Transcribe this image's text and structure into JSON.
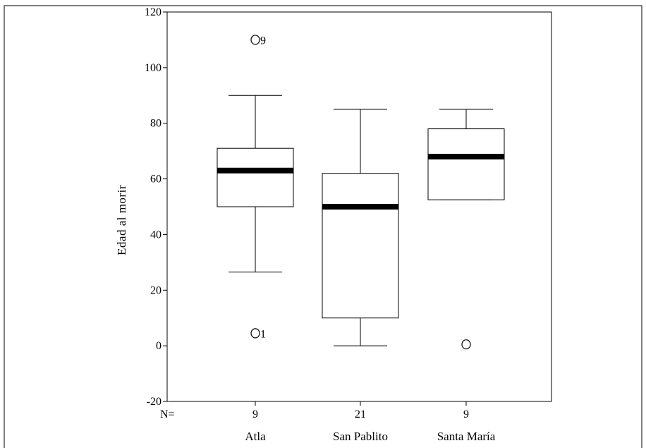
{
  "chart_data": {
    "type": "box",
    "ylabel": "Edad al morir",
    "xlabel": "",
    "ylim": [
      -20,
      120
    ],
    "yticks": [
      -20,
      0,
      20,
      40,
      60,
      80,
      100,
      120
    ],
    "n_prefix": "N=",
    "categories": [
      "Atla",
      "San Pablito",
      "Santa María"
    ],
    "n": [
      "9",
      "21",
      "9"
    ],
    "boxes": [
      {
        "category": "Atla",
        "whisker_low": 26.5,
        "q1": 50,
        "median": 63,
        "q3": 71,
        "whisker_high": 90,
        "outliers": [
          {
            "value": 110,
            "label": "9"
          },
          {
            "value": 4.5,
            "label": "1"
          }
        ]
      },
      {
        "category": "San Pablito",
        "whisker_low": 0,
        "q1": 10,
        "median": 50,
        "q3": 62,
        "whisker_high": 85,
        "outliers": []
      },
      {
        "category": "Santa María",
        "whisker_low": 52.5,
        "q1": 52.5,
        "median": 68,
        "q3": 78,
        "whisker_high": 85,
        "outliers": [
          {
            "value": 0.5,
            "label": ""
          }
        ]
      }
    ],
    "grid": false,
    "legend": "none"
  }
}
